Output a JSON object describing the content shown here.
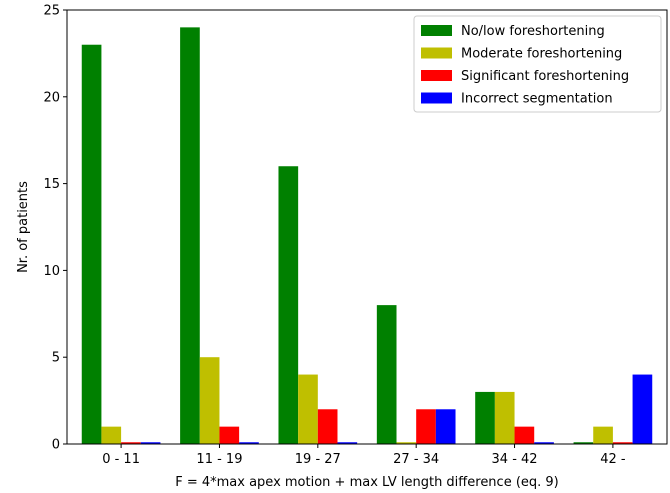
{
  "chart_data": {
    "type": "bar",
    "title": "",
    "xlabel": "F = 4*max apex motion + max LV length difference (eq. 9)",
    "ylabel": "Nr. of patients",
    "ylim": [
      0,
      25
    ],
    "yticks": [
      0,
      5,
      10,
      15,
      20,
      25
    ],
    "categories": [
      "0 - 11",
      "11 - 19",
      "19 - 27",
      "27 - 34",
      "34 - 42",
      "42 -"
    ],
    "series": [
      {
        "name": "No/low foreshortening",
        "color": "#008000",
        "values": [
          23,
          24,
          16,
          8,
          3,
          0.1
        ]
      },
      {
        "name": "Moderate foreshortening",
        "color": "#bfbf00",
        "values": [
          1,
          5,
          4,
          0.1,
          3,
          1
        ]
      },
      {
        "name": "Significant foreshortening",
        "color": "#ff0000",
        "values": [
          0.1,
          1,
          2,
          2,
          1,
          0.1
        ]
      },
      {
        "name": "Incorrect segmentation",
        "color": "#0000ff",
        "values": [
          0.1,
          0.1,
          0.1,
          2,
          0.1,
          4
        ]
      }
    ],
    "legend_position": "top-right",
    "grid": false
  }
}
